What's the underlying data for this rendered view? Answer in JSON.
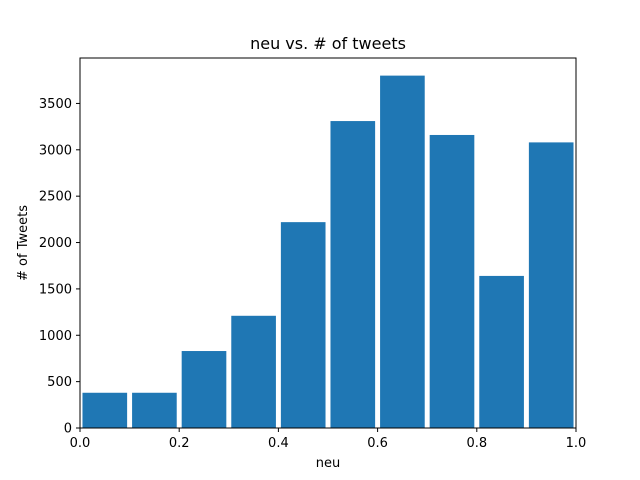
{
  "chart_data": {
    "type": "bar",
    "title": "neu vs. # of tweets",
    "xlabel": "neu",
    "ylabel": "# of Tweets",
    "xlim": [
      0.0,
      1.0
    ],
    "ylim": [
      0,
      3990
    ],
    "x_ticks": [
      {
        "value": 0.0,
        "label": "0.0"
      },
      {
        "value": 0.2,
        "label": "0.2"
      },
      {
        "value": 0.4,
        "label": "0.4"
      },
      {
        "value": 0.6,
        "label": "0.6"
      },
      {
        "value": 0.8,
        "label": "0.8"
      },
      {
        "value": 1.0,
        "label": "1.0"
      }
    ],
    "y_ticks": [
      {
        "value": 0,
        "label": "0"
      },
      {
        "value": 500,
        "label": "500"
      },
      {
        "value": 1000,
        "label": "1000"
      },
      {
        "value": 1500,
        "label": "1500"
      },
      {
        "value": 2000,
        "label": "2000"
      },
      {
        "value": 2500,
        "label": "2500"
      },
      {
        "value": 3000,
        "label": "3000"
      },
      {
        "value": 3500,
        "label": "3500"
      }
    ],
    "bins": [
      {
        "start": 0.0,
        "end": 0.1,
        "value": 380
      },
      {
        "start": 0.1,
        "end": 0.2,
        "value": 380
      },
      {
        "start": 0.2,
        "end": 0.3,
        "value": 830
      },
      {
        "start": 0.3,
        "end": 0.4,
        "value": 1210
      },
      {
        "start": 0.4,
        "end": 0.5,
        "value": 2220
      },
      {
        "start": 0.5,
        "end": 0.6,
        "value": 3310
      },
      {
        "start": 0.6,
        "end": 0.7,
        "value": 3800
      },
      {
        "start": 0.7,
        "end": 0.8,
        "value": 3160
      },
      {
        "start": 0.8,
        "end": 0.9,
        "value": 1640
      },
      {
        "start": 0.9,
        "end": 1.0,
        "value": 3080
      }
    ],
    "bar_color": "#1f77b4",
    "grid": false,
    "legend": "none"
  }
}
